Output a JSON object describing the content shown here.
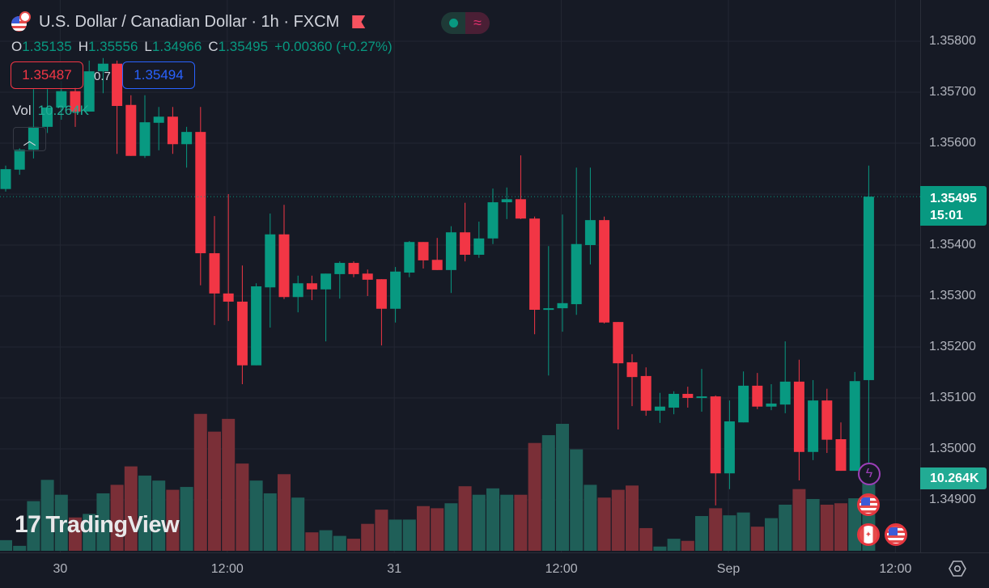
{
  "header": {
    "title": "U.S. Dollar / Canadian Dollar · 1h · FXCM",
    "ohlc": {
      "o_label": "O",
      "o": "1.35135",
      "h_label": "H",
      "h": "1.35556",
      "l_label": "L",
      "l": "1.34966",
      "c_label": "C",
      "c": "1.35495",
      "change": "+0.00360 (+0.27%)"
    },
    "bid": "1.35487",
    "spread": "0.7",
    "ask": "1.35494",
    "vol_label": "Vol",
    "vol_value": "10.264K",
    "collapse_icon": "chevron-up-icon"
  },
  "logo": "TradingView",
  "price_axis": {
    "ticks": [
      "1.35800",
      "1.35700",
      "1.35600",
      "1.35400",
      "1.35300",
      "1.35200",
      "1.35100",
      "1.35000",
      "1.34900"
    ],
    "current_price": "1.35495",
    "countdown": "15:01",
    "volume_badge": "10.264K"
  },
  "time_axis": {
    "ticks": [
      "30",
      "12:00",
      "31",
      "12:00",
      "Sep",
      "12:00"
    ]
  },
  "colors": {
    "up": "#089981",
    "down": "#f23645",
    "up_vol": "#1f5f58",
    "down_vol": "#7a2f37",
    "bg": "#161a25",
    "grid": "#232733"
  },
  "chart_data": {
    "type": "candlestick",
    "symbol": "USDCAD",
    "interval": "1h",
    "ylim": [
      1.3482,
      1.3584
    ],
    "price_ticks": [
      1.358,
      1.357,
      1.356,
      1.354,
      1.353,
      1.352,
      1.351,
      1.35,
      1.349
    ],
    "time_tick_candle_index": [
      2,
      14,
      26,
      38,
      50,
      62
    ],
    "candles": [
      [
        1.3551,
        1.35556,
        1.35505,
        1.35549
      ],
      [
        1.35548,
        1.3559,
        1.35538,
        1.35587
      ],
      [
        1.35587,
        1.35706,
        1.3557,
        1.35632
      ],
      [
        1.35632,
        1.35706,
        1.3562,
        1.3567
      ],
      [
        1.3567,
        1.35722,
        1.35646,
        1.35702
      ],
      [
        1.35702,
        1.3571,
        1.35632,
        1.35662
      ],
      [
        1.35662,
        1.35762,
        1.35662,
        1.35741
      ],
      [
        1.35741,
        1.35767,
        1.35698,
        1.35756
      ],
      [
        1.35756,
        1.35762,
        1.35579,
        1.35673
      ],
      [
        1.35675,
        1.35694,
        1.35575,
        1.35575
      ],
      [
        1.35575,
        1.35694,
        1.35571,
        1.35641
      ],
      [
        1.3564,
        1.35671,
        1.35586,
        1.35652
      ],
      [
        1.35652,
        1.35671,
        1.35579,
        1.35598
      ],
      [
        1.35598,
        1.35632,
        1.35552,
        1.35622
      ],
      [
        1.35622,
        1.35671,
        1.35321,
        1.35384
      ],
      [
        1.35384,
        1.35457,
        1.35243,
        1.35305
      ],
      [
        1.35305,
        1.355,
        1.35251,
        1.35289
      ],
      [
        1.35289,
        1.3536,
        1.35127,
        1.35164
      ],
      [
        1.35164,
        1.35325,
        1.35164,
        1.35319
      ],
      [
        1.35317,
        1.35462,
        1.35238,
        1.35421
      ],
      [
        1.35421,
        1.35479,
        1.35294,
        1.35298
      ],
      [
        1.35298,
        1.3534,
        1.35268,
        1.35325
      ],
      [
        1.35325,
        1.3534,
        1.35292,
        1.35313
      ],
      [
        1.35313,
        1.35344,
        1.35211,
        1.35344
      ],
      [
        1.35343,
        1.35368,
        1.35295,
        1.35365
      ],
      [
        1.35365,
        1.35368,
        1.35337,
        1.35343
      ],
      [
        1.35344,
        1.35352,
        1.353,
        1.35332
      ],
      [
        1.35333,
        1.35333,
        1.35203,
        1.35275
      ],
      [
        1.35275,
        1.35357,
        1.35248,
        1.35348
      ],
      [
        1.35346,
        1.35408,
        1.35337,
        1.35406
      ],
      [
        1.35406,
        1.35406,
        1.35354,
        1.3537
      ],
      [
        1.35371,
        1.35414,
        1.35351,
        1.35351
      ],
      [
        1.35351,
        1.35437,
        1.35306,
        1.35425
      ],
      [
        1.35425,
        1.35483,
        1.35368,
        1.35381
      ],
      [
        1.35381,
        1.35446,
        1.35375,
        1.35413
      ],
      [
        1.35413,
        1.35511,
        1.35402,
        1.35484
      ],
      [
        1.35484,
        1.35513,
        1.35451,
        1.3549
      ],
      [
        1.3549,
        1.35576,
        1.35451,
        1.35452
      ],
      [
        1.35452,
        1.35456,
        1.35225,
        1.35273
      ],
      [
        1.35273,
        1.35398,
        1.35144,
        1.35276
      ],
      [
        1.35276,
        1.3546,
        1.3523,
        1.35286
      ],
      [
        1.35284,
        1.35552,
        1.35263,
        1.35402
      ],
      [
        1.354,
        1.35552,
        1.35362,
        1.35449
      ],
      [
        1.35449,
        1.35456,
        1.35246,
        1.35248
      ],
      [
        1.35249,
        1.35249,
        1.35038,
        1.35168
      ],
      [
        1.3517,
        1.35186,
        1.35084,
        1.35141
      ],
      [
        1.35143,
        1.3516,
        1.35065,
        1.35075
      ],
      [
        1.35075,
        1.3511,
        1.35051,
        1.35083
      ],
      [
        1.35081,
        1.35113,
        1.35068,
        1.35108
      ],
      [
        1.35108,
        1.35122,
        1.35081,
        1.351
      ],
      [
        1.351,
        1.35157,
        1.35073,
        1.35103
      ],
      [
        1.35103,
        1.35105,
        1.34889,
        1.34952
      ],
      [
        1.34952,
        1.35095,
        1.34921,
        1.35054
      ],
      [
        1.35052,
        1.35152,
        1.35052,
        1.35124
      ],
      [
        1.35124,
        1.35149,
        1.35078,
        1.35083
      ],
      [
        1.35083,
        1.35127,
        1.35076,
        1.35089
      ],
      [
        1.35087,
        1.35211,
        1.3507,
        1.35132
      ],
      [
        1.35132,
        1.35175,
        1.34938,
        1.34994
      ],
      [
        1.34994,
        1.35135,
        1.34978,
        1.35095
      ],
      [
        1.35095,
        1.35118,
        1.34992,
        1.35018
      ],
      [
        1.35019,
        1.35052,
        1.34957,
        1.34957
      ],
      [
        1.34957,
        1.35151,
        1.34957,
        1.35133
      ],
      [
        1.35135,
        1.35556,
        1.34966,
        1.35495
      ]
    ],
    "volume_k": [
      1.5,
      0.7,
      7.0,
      10.0,
      7.9,
      4.7,
      5.2,
      8.1,
      9.3,
      11.9,
      10.6,
      9.9,
      8.6,
      9.0,
      19.3,
      16.8,
      18.6,
      12.3,
      9.9,
      8.1,
      10.8,
      7.5,
      2.6,
      2.9,
      2.1,
      1.7,
      3.8,
      5.8,
      4.4,
      4.4,
      6.3,
      6.0,
      6.7,
      9.1,
      7.9,
      8.8,
      7.9,
      7.9,
      15.2,
      16.3,
      17.9,
      14.3,
      9.3,
      7.5,
      8.6,
      9.2,
      3.2,
      0.6,
      1.7,
      1.4,
      4.9,
      6.0,
      5.0,
      5.4,
      3.4,
      4.6,
      6.5,
      8.7,
      7.3,
      6.5,
      6.7,
      7.4,
      10.264
    ]
  }
}
